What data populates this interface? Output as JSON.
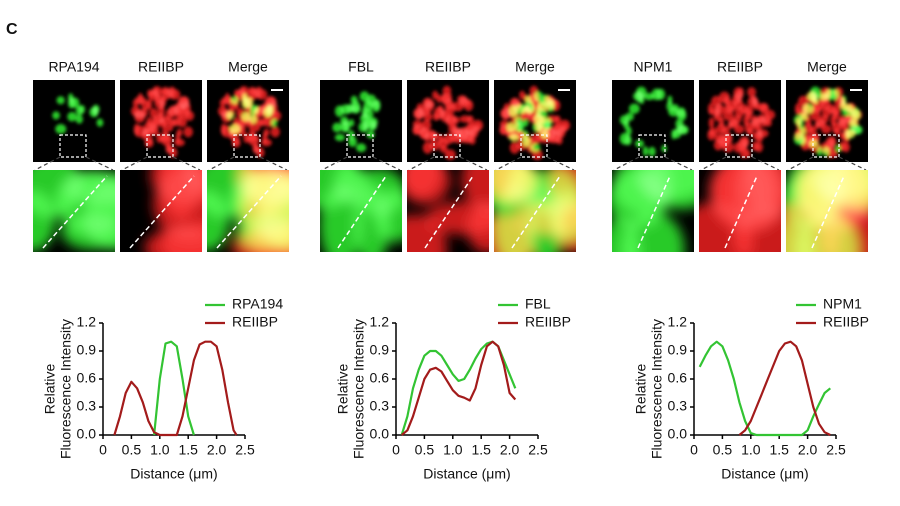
{
  "panel_label": "C",
  "images": [
    {
      "labels": [
        "RPA194",
        "REIIBP",
        "Merge"
      ]
    },
    {
      "labels": [
        "FBL",
        "REIIBP",
        "Merge"
      ]
    },
    {
      "labels": [
        "NPM1",
        "REIIBP",
        "Merge"
      ]
    }
  ],
  "chart_data": [
    {
      "type": "line",
      "ylabel": [
        "Relative",
        "Fluorescence Intensity"
      ],
      "xlabel": "Distance (μm)",
      "xlim": [
        0,
        2.5
      ],
      "ylim": [
        0,
        1.2
      ],
      "xticks": [
        0,
        0.5,
        {
          "value": 1,
          "label": "1.0"
        },
        1.5,
        {
          "value": 2,
          "label": "2.0"
        },
        2.5
      ],
      "yticks": [
        {
          "value": 0,
          "label": "0.0"
        },
        0.3,
        0.6,
        0.9,
        1.2
      ],
      "legend": "upper right",
      "series": [
        {
          "name": "RPA194",
          "color": "#33c433",
          "x": [
            0.9,
            1.0,
            1.1,
            1.2,
            1.3,
            1.4,
            1.5,
            1.6
          ],
          "values": [
            0,
            0.6,
            0.98,
            1.0,
            0.95,
            0.6,
            0.2,
            0
          ]
        },
        {
          "name": "REIIBP",
          "color": "#a31b1b",
          "x": [
            0.2,
            0.3,
            0.4,
            0.5,
            0.6,
            0.7,
            0.8,
            0.9,
            1.0,
            1.3,
            1.4,
            1.5,
            1.6,
            1.7,
            1.8,
            1.9,
            2.0,
            2.1,
            2.2,
            2.3,
            2.35
          ],
          "values": [
            0,
            0.2,
            0.45,
            0.57,
            0.5,
            0.35,
            0.15,
            0.03,
            0,
            0,
            0.2,
            0.5,
            0.8,
            0.97,
            1.0,
            1.0,
            0.95,
            0.7,
            0.35,
            0.05,
            0
          ]
        }
      ]
    },
    {
      "type": "line",
      "ylabel": [
        "Relative",
        "Fluorescence Intensity"
      ],
      "xlabel": "Distance (μm)",
      "xlim": [
        0,
        2.5
      ],
      "ylim": [
        0,
        1.2
      ],
      "xticks": [
        0,
        0.5,
        {
          "value": 1,
          "label": "1.0"
        },
        1.5,
        {
          "value": 2,
          "label": "2.0"
        },
        2.5
      ],
      "yticks": [
        {
          "value": 0,
          "label": "0.0"
        },
        0.3,
        0.6,
        0.9,
        1.2
      ],
      "legend": "upper right",
      "series": [
        {
          "name": "FBL",
          "color": "#33c433",
          "x": [
            0.1,
            0.2,
            0.3,
            0.4,
            0.5,
            0.6,
            0.7,
            0.8,
            0.9,
            1.0,
            1.1,
            1.2,
            1.3,
            1.4,
            1.5,
            1.6,
            1.7,
            1.8,
            1.9,
            2.0,
            2.1
          ],
          "values": [
            0,
            0.2,
            0.5,
            0.7,
            0.85,
            0.9,
            0.9,
            0.85,
            0.75,
            0.65,
            0.58,
            0.6,
            0.7,
            0.82,
            0.92,
            0.98,
            1.0,
            0.95,
            0.8,
            0.65,
            0.5
          ]
        },
        {
          "name": "REIIBP",
          "color": "#a31b1b",
          "x": [
            0.1,
            0.2,
            0.3,
            0.4,
            0.5,
            0.6,
            0.7,
            0.8,
            0.9,
            1.0,
            1.1,
            1.2,
            1.3,
            1.4,
            1.5,
            1.6,
            1.7,
            1.8,
            1.9,
            2.0,
            2.1
          ],
          "values": [
            0,
            0.05,
            0.2,
            0.4,
            0.6,
            0.7,
            0.72,
            0.68,
            0.58,
            0.48,
            0.42,
            0.4,
            0.37,
            0.5,
            0.75,
            0.95,
            1.0,
            0.95,
            0.75,
            0.45,
            0.38
          ]
        }
      ]
    },
    {
      "type": "line",
      "ylabel": [
        "Relative",
        "Fluorescence Intensity"
      ],
      "xlabel": "Distance (μm)",
      "xlim": [
        0,
        2.5
      ],
      "ylim": [
        0,
        1.2
      ],
      "xticks": [
        0,
        0.5,
        {
          "value": 1,
          "label": "1.0"
        },
        1.5,
        {
          "value": 2,
          "label": "2.0"
        },
        2.5
      ],
      "yticks": [
        {
          "value": 0,
          "label": "0.0"
        },
        0.3,
        0.6,
        0.9,
        1.2
      ],
      "legend": "upper right",
      "series": [
        {
          "name": "NPM1",
          "color": "#33c433",
          "x": [
            0.1,
            0.2,
            0.3,
            0.4,
            0.5,
            0.6,
            0.7,
            0.8,
            0.9,
            1.0,
            1.1,
            1.9,
            2.0,
            2.1,
            2.2,
            2.3,
            2.4
          ],
          "values": [
            0.73,
            0.85,
            0.95,
            1.0,
            0.95,
            0.8,
            0.6,
            0.35,
            0.15,
            0.02,
            0,
            0,
            0.05,
            0.2,
            0.33,
            0.45,
            0.5
          ]
        },
        {
          "name": "REIIBP",
          "color": "#a31b1b",
          "x": [
            0.8,
            0.9,
            1.0,
            1.1,
            1.2,
            1.3,
            1.4,
            1.5,
            1.6,
            1.7,
            1.8,
            1.9,
            2.0,
            2.1,
            2.2,
            2.3,
            2.4
          ],
          "values": [
            0,
            0.05,
            0.15,
            0.3,
            0.45,
            0.6,
            0.75,
            0.9,
            0.98,
            1.0,
            0.95,
            0.8,
            0.55,
            0.3,
            0.12,
            0.03,
            0
          ]
        }
      ]
    }
  ]
}
